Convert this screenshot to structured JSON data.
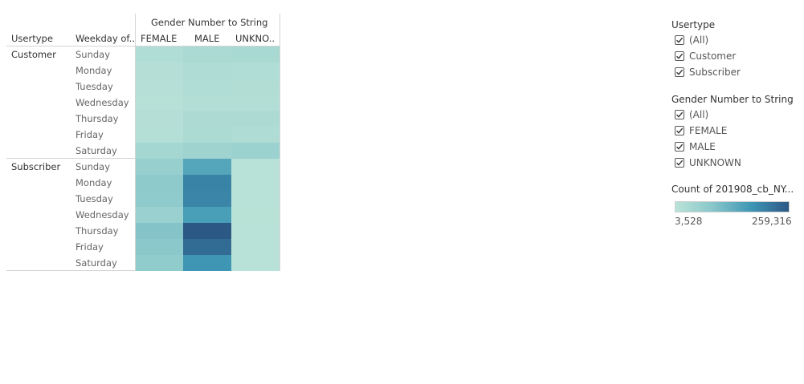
{
  "crosstab": {
    "column_group_title": "Gender Number to String",
    "row_header_1": "Usertype",
    "row_header_2": "Weekday of..",
    "columns": [
      "FEMALE",
      "MALE",
      "UNKNO.."
    ],
    "usertypes": [
      "Customer",
      "Subscriber"
    ],
    "weekdays": [
      "Sunday",
      "Monday",
      "Tuesday",
      "Wednesday",
      "Thursday",
      "Friday",
      "Saturday"
    ]
  },
  "chart_data": {
    "type": "heatmap",
    "x_title": "Gender Number to String",
    "x_categories": [
      "FEMALE",
      "MALE",
      "UNKNO.."
    ],
    "y_categories": [
      "Customer | Sunday",
      "Customer | Monday",
      "Customer | Tuesday",
      "Customer | Wednesday",
      "Customer | Thursday",
      "Customer | Friday",
      "Customer | Saturday",
      "Subscriber | Sunday",
      "Subscriber | Monday",
      "Subscriber | Tuesday",
      "Subscriber | Wednesday",
      "Subscriber | Thursday",
      "Subscriber | Friday",
      "Subscriber | Saturday"
    ],
    "values": [
      [
        22000,
        30000,
        34000
      ],
      [
        14000,
        24000,
        22000
      ],
      [
        12000,
        22000,
        20000
      ],
      [
        10000,
        19000,
        18000
      ],
      [
        14000,
        26000,
        26000
      ],
      [
        16000,
        28000,
        24000
      ],
      [
        40000,
        50000,
        56000
      ],
      [
        62000,
        148000,
        8000
      ],
      [
        78000,
        200000,
        8000
      ],
      [
        76000,
        198000,
        8000
      ],
      [
        58000,
        162000,
        7000
      ],
      [
        92000,
        259316,
        8000
      ],
      [
        84000,
        232000,
        8000
      ],
      [
        72000,
        176000,
        8000
      ]
    ],
    "color_scale": {
      "title": "Count of 201908_cb_NY...",
      "min": 3528,
      "max": 259316,
      "min_label": "3,528",
      "max_label": "259,316",
      "colors": [
        "#bbe3d8",
        "#87c6ca",
        "#3f97b5",
        "#2c5885"
      ]
    }
  },
  "filters": {
    "usertype": {
      "title": "Usertype",
      "items": [
        {
          "label": "(All)",
          "checked": true
        },
        {
          "label": "Customer",
          "checked": true
        },
        {
          "label": "Subscriber",
          "checked": true
        }
      ]
    },
    "gender": {
      "title": "Gender Number to String",
      "items": [
        {
          "label": "(All)",
          "checked": true
        },
        {
          "label": "FEMALE",
          "checked": true
        },
        {
          "label": "MALE",
          "checked": true
        },
        {
          "label": "UNKNOWN",
          "checked": true
        }
      ]
    }
  },
  "legend": {
    "title": "Count of 201908_cb_NY...",
    "min_label": "3,528",
    "max_label": "259,316"
  }
}
